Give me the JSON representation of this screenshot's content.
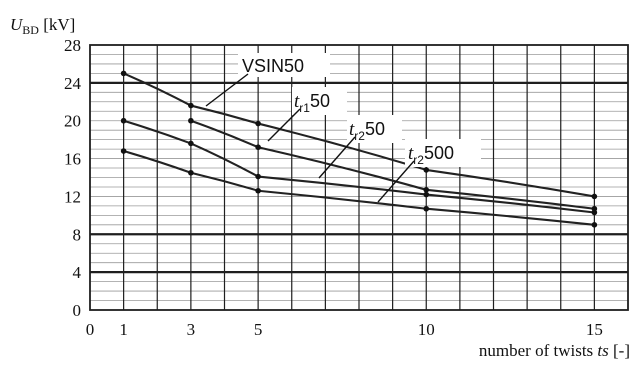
{
  "chart_data": {
    "type": "line",
    "title": "",
    "ylabel_symbol": "U",
    "ylabel_subscript": "BD",
    "ylabel_unit": "[kV]",
    "xlabel_prefix": "number of twists ",
    "xlabel_symbol": "ts",
    "xlabel_unit": " [-]",
    "xlim": [
      0,
      16
    ],
    "ylim": [
      0,
      28
    ],
    "x_ticks": [
      0,
      1,
      3,
      5,
      10,
      15
    ],
    "y_ticks": [
      0,
      4,
      8,
      12,
      16,
      20,
      24,
      28
    ],
    "y_major_lines": [
      4,
      8,
      24
    ],
    "y_minor_step": 1,
    "grid": true,
    "series": [
      {
        "name": "VSIN50",
        "label_main": "VSIN50",
        "label_sub": "",
        "label_tail": "",
        "x": [
          1,
          3,
          5,
          10,
          15
        ],
        "y": [
          25.0,
          21.6,
          19.7,
          14.8,
          12.0
        ]
      },
      {
        "name": "tr150",
        "label_main": "t",
        "label_sub": "r1",
        "label_tail": "50",
        "x": [
          3,
          5,
          10,
          15
        ],
        "y": [
          20.0,
          17.2,
          12.7,
          10.7
        ]
      },
      {
        "name": "tr250",
        "label_main": "t",
        "label_sub": "r2",
        "label_tail": "50",
        "x": [
          1,
          3,
          5,
          10,
          15
        ],
        "y": [
          20.0,
          17.6,
          14.1,
          12.2,
          10.3
        ]
      },
      {
        "name": "tr2500",
        "label_main": "t",
        "label_sub": "r2",
        "label_tail": "500",
        "x": [
          1,
          3,
          5,
          10,
          15
        ],
        "y": [
          16.8,
          14.5,
          12.6,
          10.7,
          9.0
        ]
      }
    ]
  }
}
